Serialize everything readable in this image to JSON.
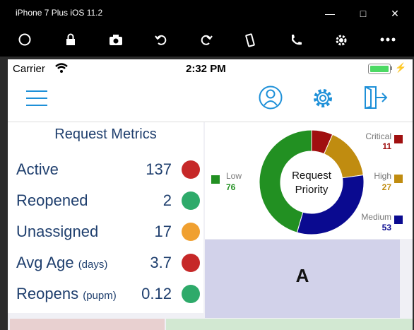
{
  "window": {
    "title": "iPhone 7 Plus iOS 11.2",
    "buttons": [
      "minimize-icon",
      "maximize-icon",
      "close-icon"
    ]
  },
  "toolbar": {
    "tools": [
      "home-icon",
      "lock-icon",
      "camera-icon",
      "rotate-left-icon",
      "rotate-right-icon",
      "shake-icon",
      "call-icon",
      "settings-icon",
      "more-icon"
    ]
  },
  "status_bar": {
    "carrier": "Carrier",
    "time": "2:32 PM",
    "battery_level": 1.0
  },
  "navbar": {
    "icons": [
      "menu-icon",
      "user-icon",
      "gear-icon",
      "logout-icon"
    ],
    "accent": "#1e90d8"
  },
  "metrics": {
    "title": "Request Metrics",
    "rows": [
      {
        "label": "Active",
        "sub": "",
        "value": "137",
        "status": "red"
      },
      {
        "label": "Reopened",
        "sub": "",
        "value": "2",
        "status": "green"
      },
      {
        "label": "Unassigned",
        "sub": "",
        "value": "17",
        "status": "orange"
      },
      {
        "label": "Avg Age",
        "sub": "(days)",
        "value": "3.7",
        "status": "red"
      },
      {
        "label": "Reopens",
        "sub": "(pupm)",
        "value": "0.12",
        "status": "green"
      }
    ],
    "status_colors": {
      "red": "#c62828",
      "green": "#2eaa6a",
      "orange": "#f0a030"
    }
  },
  "chart_data": {
    "type": "pie",
    "title": "Request Priority",
    "categories": [
      "Critical",
      "High",
      "Medium",
      "Low"
    ],
    "values": [
      11,
      27,
      53,
      76
    ],
    "colors": [
      "#a01010",
      "#c08c10",
      "#0a0a90",
      "#229022"
    ]
  },
  "tiles": {
    "a_label": "A"
  }
}
